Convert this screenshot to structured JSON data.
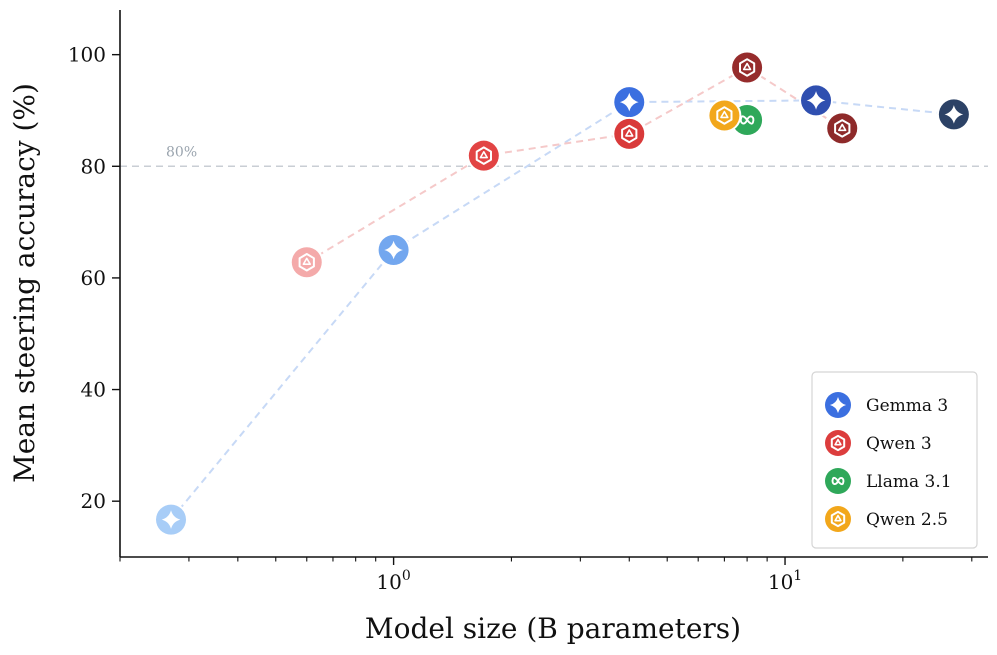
{
  "chart_data": {
    "type": "scatter",
    "xlabel": "Model size (B parameters)",
    "ylabel": "Mean steering accuracy (%)",
    "xscale": "log",
    "xlim": [
      0.2,
      33
    ],
    "ylim": [
      10,
      108
    ],
    "x_ticks": [
      {
        "value": 1,
        "base": "10",
        "exp": "0"
      },
      {
        "value": 10,
        "base": "10",
        "exp": "1"
      }
    ],
    "y_ticks": [
      20,
      40,
      60,
      80,
      100
    ],
    "grid": false,
    "legend_position": "lower right",
    "reference_line": {
      "y": 80,
      "label": "80%"
    },
    "series": [
      {
        "name": "Gemma 3",
        "icon": "sparkle-icon",
        "color": "#3b6fe0",
        "connected": true,
        "line_color": "#c7d9f6",
        "points": [
          {
            "x": 0.27,
            "y": 16.7,
            "color": "#a8cdf7"
          },
          {
            "x": 1,
            "y": 65,
            "color": "#73a7ef"
          },
          {
            "x": 4,
            "y": 91.5,
            "color": "#3b6fe0"
          },
          {
            "x": 12,
            "y": 91.8,
            "color": "#2f4fb0"
          },
          {
            "x": 27,
            "y": 89.3,
            "color": "#2c4266"
          }
        ]
      },
      {
        "name": "Qwen 3",
        "icon": "qwen-icon",
        "color": "#dc3d3d",
        "connected": true,
        "line_color": "#f5c9c9",
        "points": [
          {
            "x": 0.6,
            "y": 62.8,
            "color": "#f4aaaa"
          },
          {
            "x": 1.7,
            "y": 81.9,
            "color": "#e24444"
          },
          {
            "x": 4,
            "y": 85.8,
            "color": "#d93a3a"
          },
          {
            "x": 8,
            "y": 97.7,
            "color": "#962c2c"
          },
          {
            "x": 14,
            "y": 86.8,
            "color": "#8e2a2a"
          }
        ]
      },
      {
        "name": "Llama 3.1",
        "icon": "meta-icon",
        "color": "#2fa85a",
        "connected": false,
        "points": [
          {
            "x": 8,
            "y": 88.3,
            "color": "#2fa85a"
          }
        ]
      },
      {
        "name": "Qwen 2.5",
        "icon": "qwen-icon",
        "color": "#f2a71b",
        "connected": false,
        "points": [
          {
            "x": 7,
            "y": 89.1,
            "color": "#f2a71b"
          }
        ]
      }
    ]
  }
}
